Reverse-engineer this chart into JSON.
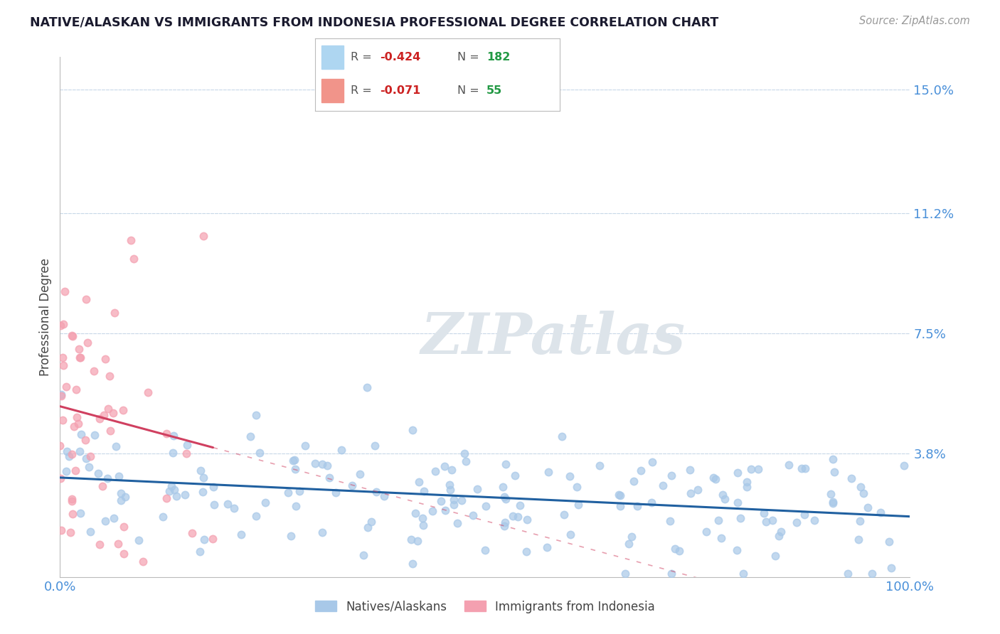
{
  "title": "NATIVE/ALASKAN VS IMMIGRANTS FROM INDONESIA PROFESSIONAL DEGREE CORRELATION CHART",
  "source_text": "Source: ZipAtlas.com",
  "ylabel": "Professional Degree",
  "watermark": "ZIPatlas",
  "xlim": [
    0.0,
    100.0
  ],
  "ylim": [
    0.0,
    16.0
  ],
  "yticks": [
    3.8,
    7.5,
    11.2,
    15.0
  ],
  "xtick_labels": [
    "0.0%",
    "100.0%"
  ],
  "ytick_labels": [
    "3.8%",
    "7.5%",
    "11.2%",
    "15.0%"
  ],
  "series1_label": "Natives/Alaskans",
  "series2_label": "Immigrants from Indonesia",
  "series1_color": "#a8c8e8",
  "series2_color": "#f4a0b0",
  "series1_line_color": "#2060a0",
  "series2_line_color": "#d04060",
  "legend_box_color1": "#aed6f1",
  "legend_box_color2": "#f1948a",
  "title_color": "#1a1a2e",
  "tick_color": "#4a90d9",
  "grid_color": "#c8d8e8",
  "background_color": "#ffffff",
  "watermark_color": "#dde4ea",
  "legend_text_color": "#555555",
  "legend_r_color": "#cc2222",
  "legend_n_color": "#229944"
}
